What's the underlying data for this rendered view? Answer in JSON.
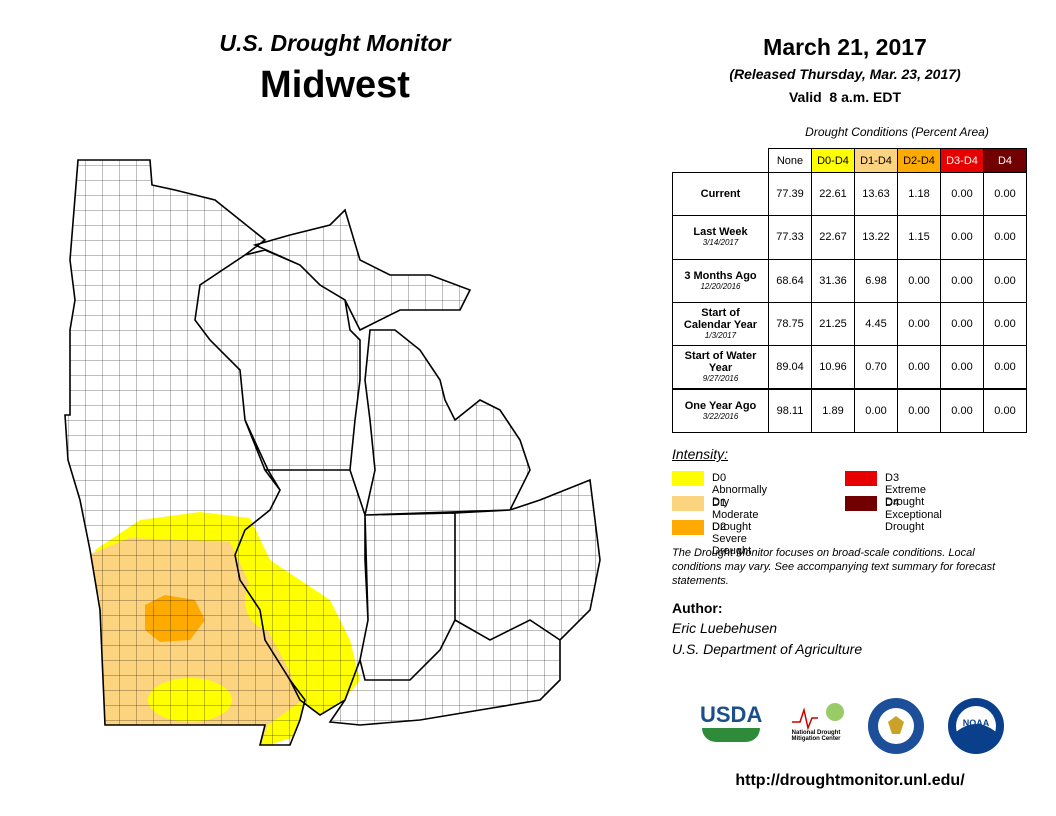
{
  "header": {
    "title": "U.S. Drought Monitor",
    "region": "Midwest",
    "date": "March 21, 2017",
    "released": "(Released Thursday, Mar. 23, 2017)",
    "valid": "Valid  8 a.m. EDT"
  },
  "table": {
    "caption": "Drought Conditions (Percent Area)",
    "columns": [
      {
        "label": "None",
        "color": "#ffffff"
      },
      {
        "label": "D0-D4",
        "color": "#ffff00"
      },
      {
        "label": "D1-D4",
        "color": "#fcd37f"
      },
      {
        "label": "D2-D4",
        "color": "#ffaa00"
      },
      {
        "label": "D3-D4",
        "color": "#e60000"
      },
      {
        "label": "D4",
        "color": "#730000"
      }
    ],
    "rows": [
      {
        "label": "Current",
        "values": [
          "77.39",
          "22.61",
          "13.63",
          "1.18",
          "0.00",
          "0.00"
        ]
      },
      {
        "label": "Last Week",
        "date": "3/14/2017",
        "values": [
          "77.33",
          "22.67",
          "13.22",
          "1.15",
          "0.00",
          "0.00"
        ]
      },
      {
        "label": "3 Months Ago",
        "date": "12/20/2016",
        "values": [
          "68.64",
          "31.36",
          "6.98",
          "0.00",
          "0.00",
          "0.00"
        ]
      },
      {
        "label": "Start of Calendar Year",
        "date": "1/3/2017",
        "values": [
          "78.75",
          "21.25",
          "4.45",
          "0.00",
          "0.00",
          "0.00"
        ]
      },
      {
        "label": "Start of Water Year",
        "date": "9/27/2016",
        "values": [
          "89.04",
          "10.96",
          "0.70",
          "0.00",
          "0.00",
          "0.00"
        ]
      },
      {
        "label": "One Year Ago",
        "date": "3/22/2016",
        "values": [
          "98.11",
          "1.89",
          "0.00",
          "0.00",
          "0.00",
          "0.00"
        ]
      }
    ]
  },
  "legend": {
    "title": "Intensity:",
    "items": [
      {
        "label": "D0 Abnormally Dry",
        "color": "#ffff00"
      },
      {
        "label": "D1 Moderate Drought",
        "color": "#fcd37f"
      },
      {
        "label": "D2 Severe Drought",
        "color": "#ffaa00"
      },
      {
        "label": "D3 Extreme Drought",
        "color": "#e60000"
      },
      {
        "label": "D4 Exceptional Drought",
        "color": "#730000"
      }
    ]
  },
  "note": "The Drought Monitor focuses on broad-scale conditions. Local conditions may vary. See accompanying text summary for forecast statements.",
  "author": {
    "heading": "Author:",
    "name": "Eric Luebehusen",
    "organization": "U.S. Department of Agriculture"
  },
  "logos": {
    "usda": "USDA",
    "ndmc": "National Drought Mitigation Center",
    "noaa": "NOAA"
  },
  "url": "http://droughtmonitor.unl.edu/"
}
